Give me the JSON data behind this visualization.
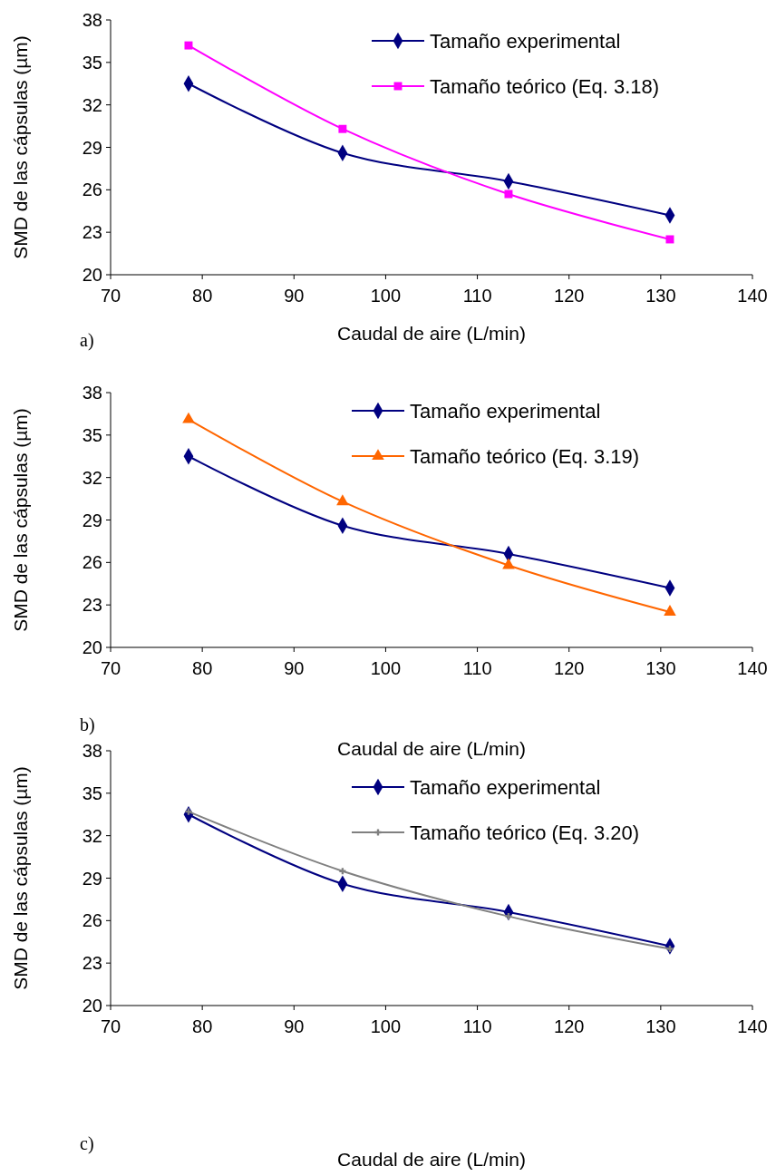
{
  "chart_data": [
    {
      "type": "line",
      "xlabel": "Caudal de aire (L/min)",
      "ylabel": "SMD de las cápsulas (µm)",
      "x": [
        78.5,
        95.3,
        113.4,
        131
      ],
      "xlim": [
        70,
        140
      ],
      "xticks": [
        70,
        80,
        90,
        100,
        110,
        120,
        130,
        140
      ],
      "ylim": [
        20,
        38
      ],
      "yticks": [
        20,
        23,
        26,
        29,
        32,
        35,
        38
      ],
      "legend": "top right",
      "grid": false,
      "annotations": [
        "a)"
      ],
      "series": [
        {
          "name": "Tamaño experimental",
          "color": "#000080",
          "marker": "diamond",
          "values": [
            33.5,
            28.6,
            26.6,
            24.2
          ]
        },
        {
          "name": "Tamaño teórico (Eq. 3.18)",
          "color": "#ff00ff",
          "marker": "square",
          "values": [
            36.2,
            30.3,
            25.7,
            22.5
          ]
        }
      ]
    },
    {
      "type": "line",
      "xlabel": "Caudal de aire (L/min)",
      "ylabel": "SMD de las cápsulas (µm)",
      "x": [
        78.5,
        95.3,
        113.4,
        131
      ],
      "xlim": [
        70,
        140
      ],
      "xticks": [
        70,
        80,
        90,
        100,
        110,
        120,
        130,
        140
      ],
      "ylim": [
        20,
        38
      ],
      "yticks": [
        20,
        23,
        26,
        29,
        32,
        35,
        38
      ],
      "legend": "top right",
      "grid": false,
      "annotations": [
        "b)"
      ],
      "series": [
        {
          "name": "Tamaño experimental",
          "color": "#000080",
          "marker": "diamond",
          "values": [
            33.5,
            28.6,
            26.6,
            24.2
          ]
        },
        {
          "name": "Tamaño teórico (Eq. 3.19)",
          "color": "#ff6600",
          "marker": "triangle",
          "values": [
            36.1,
            30.3,
            25.8,
            22.5
          ]
        }
      ]
    },
    {
      "type": "line",
      "xlabel": "Caudal de aire (L/min)",
      "ylabel": "SMD de las cápsulas (µm)",
      "x": [
        78.5,
        95.3,
        113.4,
        131
      ],
      "xlim": [
        70,
        140
      ],
      "xticks": [
        70,
        80,
        90,
        100,
        110,
        120,
        130,
        140
      ],
      "ylim": [
        20,
        38
      ],
      "yticks": [
        20,
        23,
        26,
        29,
        32,
        35,
        38
      ],
      "legend": "top right",
      "grid": false,
      "annotations": [
        "c)"
      ],
      "series": [
        {
          "name": "Tamaño experimental",
          "color": "#000080",
          "marker": "diamond",
          "values": [
            33.5,
            28.6,
            26.6,
            24.2
          ]
        },
        {
          "name": "Tamaño teórico (Eq. 3.20)",
          "color": "#808080",
          "marker": "cross",
          "values": [
            33.7,
            29.5,
            26.3,
            24.0
          ]
        }
      ]
    }
  ]
}
